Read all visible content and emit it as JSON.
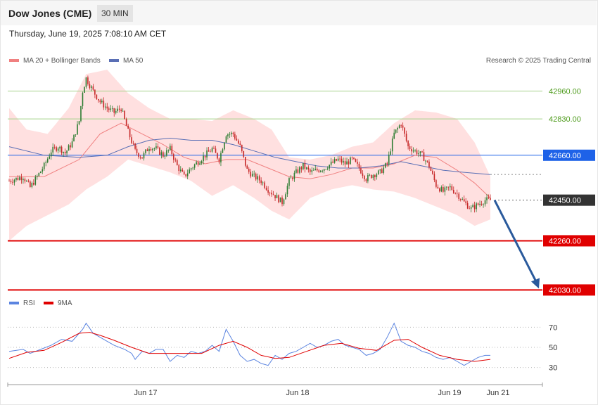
{
  "header": {
    "symbol": "Dow Jones (CME)",
    "interval": "30 MIN",
    "timestamp": "Thursday, June 19, 2025 7:08:10 AM CET"
  },
  "legend": {
    "ma20_label": "MA 20 + Bollinger Bands",
    "ma50_label": "MA 50",
    "credit": "Research © 2025 Trading Central",
    "rsi_label": "RSI",
    "rsi_ma_label": "9MA"
  },
  "colors": {
    "up": "#2e7d32",
    "down": "#c62828",
    "band": "#ffd6d6",
    "ma20": "#f08080",
    "ma50": "#5a6fb5",
    "pivot": "#1e62e8",
    "support": "#e00000",
    "resistance": "#a5d28a",
    "arrow": "#2a5a9c",
    "rsi": "#5b84e0",
    "rsi_ma": "#e00000"
  },
  "chart_data": [
    {
      "type": "candlestick",
      "ylim": [
        41890,
        43090
      ],
      "x_labels": [
        "Jun 17",
        "Jun 18",
        "Jun 19",
        "Jun 21"
      ],
      "levels": [
        {
          "value": 42960,
          "label": "42960.00",
          "kind": "resistance"
        },
        {
          "value": 42830,
          "label": "42830.00",
          "kind": "resistance"
        },
        {
          "value": 42660,
          "label": "42660.00",
          "kind": "pivot"
        },
        {
          "value": 42450,
          "label": "42450.00",
          "kind": "last"
        },
        {
          "value": 42260,
          "label": "42260.00",
          "kind": "support"
        },
        {
          "value": 42030,
          "label": "42030.00",
          "kind": "support"
        }
      ],
      "close_anchors": [
        [
          0,
          42540
        ],
        [
          8,
          42560
        ],
        [
          12,
          42510
        ],
        [
          16,
          42560
        ],
        [
          20,
          42610
        ],
        [
          24,
          42680
        ],
        [
          28,
          42700
        ],
        [
          32,
          42670
        ],
        [
          36,
          42720
        ],
        [
          40,
          42820
        ],
        [
          42,
          42960
        ],
        [
          44,
          43020
        ],
        [
          48,
          42960
        ],
        [
          52,
          42910
        ],
        [
          56,
          42880
        ],
        [
          60,
          42860
        ],
        [
          64,
          42880
        ],
        [
          68,
          42770
        ],
        [
          72,
          42680
        ],
        [
          76,
          42650
        ],
        [
          80,
          42700
        ],
        [
          84,
          42690
        ],
        [
          88,
          42660
        ],
        [
          92,
          42690
        ],
        [
          96,
          42610
        ],
        [
          100,
          42560
        ],
        [
          104,
          42600
        ],
        [
          108,
          42630
        ],
        [
          112,
          42660
        ],
        [
          116,
          42690
        ],
        [
          120,
          42640
        ],
        [
          124,
          42760
        ],
        [
          128,
          42760
        ],
        [
          132,
          42700
        ],
        [
          136,
          42590
        ],
        [
          140,
          42560
        ],
        [
          144,
          42540
        ],
        [
          148,
          42500
        ],
        [
          152,
          42470
        ],
        [
          156,
          42440
        ],
        [
          160,
          42540
        ],
        [
          164,
          42580
        ],
        [
          168,
          42610
        ],
        [
          172,
          42580
        ],
        [
          176,
          42590
        ],
        [
          180,
          42600
        ],
        [
          184,
          42620
        ],
        [
          188,
          42640
        ],
        [
          192,
          42620
        ],
        [
          196,
          42640
        ],
        [
          200,
          42600
        ],
        [
          204,
          42550
        ],
        [
          208,
          42570
        ],
        [
          212,
          42580
        ],
        [
          216,
          42620
        ],
        [
          220,
          42760
        ],
        [
          224,
          42810
        ],
        [
          228,
          42700
        ],
        [
          232,
          42680
        ],
        [
          236,
          42660
        ],
        [
          240,
          42610
        ],
        [
          244,
          42520
        ],
        [
          248,
          42490
        ],
        [
          252,
          42510
        ],
        [
          256,
          42480
        ],
        [
          260,
          42440
        ],
        [
          264,
          42410
        ],
        [
          268,
          42430
        ],
        [
          272,
          42450
        ],
        [
          275,
          42450
        ]
      ],
      "ma20": [
        [
          0,
          42560
        ],
        [
          20,
          42560
        ],
        [
          40,
          42640
        ],
        [
          52,
          42760
        ],
        [
          64,
          42810
        ],
        [
          76,
          42760
        ],
        [
          88,
          42710
        ],
        [
          100,
          42650
        ],
        [
          112,
          42620
        ],
        [
          124,
          42640
        ],
        [
          136,
          42640
        ],
        [
          148,
          42600
        ],
        [
          160,
          42560
        ],
        [
          172,
          42550
        ],
        [
          184,
          42570
        ],
        [
          196,
          42600
        ],
        [
          208,
          42600
        ],
        [
          220,
          42620
        ],
        [
          232,
          42660
        ],
        [
          244,
          42650
        ],
        [
          256,
          42590
        ],
        [
          266,
          42530
        ],
        [
          275,
          42460
        ]
      ],
      "ma50": [
        [
          0,
          42700
        ],
        [
          20,
          42660
        ],
        [
          40,
          42650
        ],
        [
          56,
          42660
        ],
        [
          68,
          42700
        ],
        [
          80,
          42730
        ],
        [
          92,
          42740
        ],
        [
          104,
          42730
        ],
        [
          116,
          42730
        ],
        [
          128,
          42710
        ],
        [
          140,
          42680
        ],
        [
          152,
          42650
        ],
        [
          164,
          42630
        ],
        [
          176,
          42610
        ],
        [
          188,
          42600
        ],
        [
          200,
          42600
        ],
        [
          212,
          42610
        ],
        [
          224,
          42630
        ],
        [
          236,
          42610
        ],
        [
          248,
          42590
        ],
        [
          260,
          42580
        ],
        [
          275,
          42570
        ]
      ],
      "bb_upper": [
        [
          0,
          42880
        ],
        [
          10,
          42780
        ],
        [
          22,
          42760
        ],
        [
          34,
          42880
        ],
        [
          44,
          43040
        ],
        [
          56,
          43060
        ],
        [
          68,
          42950
        ],
        [
          80,
          42880
        ],
        [
          92,
          42830
        ],
        [
          104,
          42830
        ],
        [
          116,
          42820
        ],
        [
          128,
          42870
        ],
        [
          140,
          42830
        ],
        [
          150,
          42780
        ],
        [
          160,
          42650
        ],
        [
          172,
          42640
        ],
        [
          184,
          42660
        ],
        [
          196,
          42700
        ],
        [
          208,
          42720
        ],
        [
          220,
          42810
        ],
        [
          232,
          42870
        ],
        [
          244,
          42860
        ],
        [
          256,
          42830
        ],
        [
          266,
          42720
        ],
        [
          275,
          42560
        ]
      ],
      "bb_lower": [
        [
          0,
          42260
        ],
        [
          10,
          42330
        ],
        [
          22,
          42380
        ],
        [
          34,
          42430
        ],
        [
          44,
          42500
        ],
        [
          56,
          42560
        ],
        [
          68,
          42640
        ],
        [
          80,
          42610
        ],
        [
          92,
          42580
        ],
        [
          104,
          42540
        ],
        [
          116,
          42470
        ],
        [
          128,
          42520
        ],
        [
          140,
          42460
        ],
        [
          150,
          42400
        ],
        [
          160,
          42360
        ],
        [
          172,
          42460
        ],
        [
          184,
          42500
        ],
        [
          196,
          42520
        ],
        [
          208,
          42500
        ],
        [
          220,
          42490
        ],
        [
          232,
          42460
        ],
        [
          244,
          42420
        ],
        [
          256,
          42380
        ],
        [
          266,
          42330
        ],
        [
          275,
          42360
        ]
      ],
      "projection": {
        "from": 42450,
        "to": 42030
      }
    },
    {
      "type": "line",
      "ylim": [
        15,
        85
      ],
      "y_ticks": [
        70,
        50,
        30
      ],
      "series": [
        {
          "name": "RSI",
          "values": [
            [
              0,
              46
            ],
            [
              8,
              48
            ],
            [
              12,
              44
            ],
            [
              18,
              48
            ],
            [
              24,
              52
            ],
            [
              30,
              58
            ],
            [
              36,
              56
            ],
            [
              40,
              64
            ],
            [
              42,
              68
            ],
            [
              44,
              74
            ],
            [
              48,
              64
            ],
            [
              52,
              60
            ],
            [
              56,
              56
            ],
            [
              60,
              52
            ],
            [
              66,
              48
            ],
            [
              70,
              44
            ],
            [
              72,
              38
            ],
            [
              76,
              46
            ],
            [
              80,
              44
            ],
            [
              84,
              48
            ],
            [
              88,
              48
            ],
            [
              92,
              36
            ],
            [
              96,
              42
            ],
            [
              100,
              40
            ],
            [
              104,
              46
            ],
            [
              108,
              44
            ],
            [
              112,
              46
            ],
            [
              116,
              52
            ],
            [
              120,
              46
            ],
            [
              124,
              68
            ],
            [
              128,
              56
            ],
            [
              132,
              42
            ],
            [
              136,
              36
            ],
            [
              140,
              38
            ],
            [
              144,
              34
            ],
            [
              148,
              32
            ],
            [
              152,
              42
            ],
            [
              156,
              38
            ],
            [
              160,
              44
            ],
            [
              164,
              46
            ],
            [
              168,
              50
            ],
            [
              172,
              54
            ],
            [
              176,
              50
            ],
            [
              180,
              52
            ],
            [
              184,
              56
            ],
            [
              188,
              58
            ],
            [
              192,
              52
            ],
            [
              196,
              50
            ],
            [
              200,
              48
            ],
            [
              204,
              42
            ],
            [
              208,
              44
            ],
            [
              212,
              48
            ],
            [
              216,
              60
            ],
            [
              220,
              74
            ],
            [
              224,
              56
            ],
            [
              228,
              52
            ],
            [
              232,
              50
            ],
            [
              236,
              46
            ],
            [
              240,
              44
            ],
            [
              244,
              40
            ],
            [
              248,
              38
            ],
            [
              252,
              40
            ],
            [
              256,
              36
            ],
            [
              260,
              32
            ],
            [
              264,
              36
            ],
            [
              268,
              40
            ],
            [
              272,
              42
            ],
            [
              275,
              42
            ]
          ]
        },
        {
          "name": "9MA",
          "values": [
            [
              0,
              39
            ],
            [
              10,
              45
            ],
            [
              20,
              47
            ],
            [
              30,
              55
            ],
            [
              40,
              64
            ],
            [
              46,
              65
            ],
            [
              52,
              62
            ],
            [
              60,
              57
            ],
            [
              70,
              50
            ],
            [
              80,
              44
            ],
            [
              90,
              44
            ],
            [
              100,
              44
            ],
            [
              110,
              44
            ],
            [
              120,
              52
            ],
            [
              128,
              56
            ],
            [
              136,
              50
            ],
            [
              144,
              42
            ],
            [
              152,
              39
            ],
            [
              160,
              40
            ],
            [
              170,
              46
            ],
            [
              180,
              52
            ],
            [
              190,
              54
            ],
            [
              200,
              49
            ],
            [
              210,
              47
            ],
            [
              220,
              57
            ],
            [
              228,
              58
            ],
            [
              236,
              50
            ],
            [
              246,
              42
            ],
            [
              256,
              38
            ],
            [
              266,
              36
            ],
            [
              275,
              38
            ]
          ]
        }
      ]
    }
  ]
}
